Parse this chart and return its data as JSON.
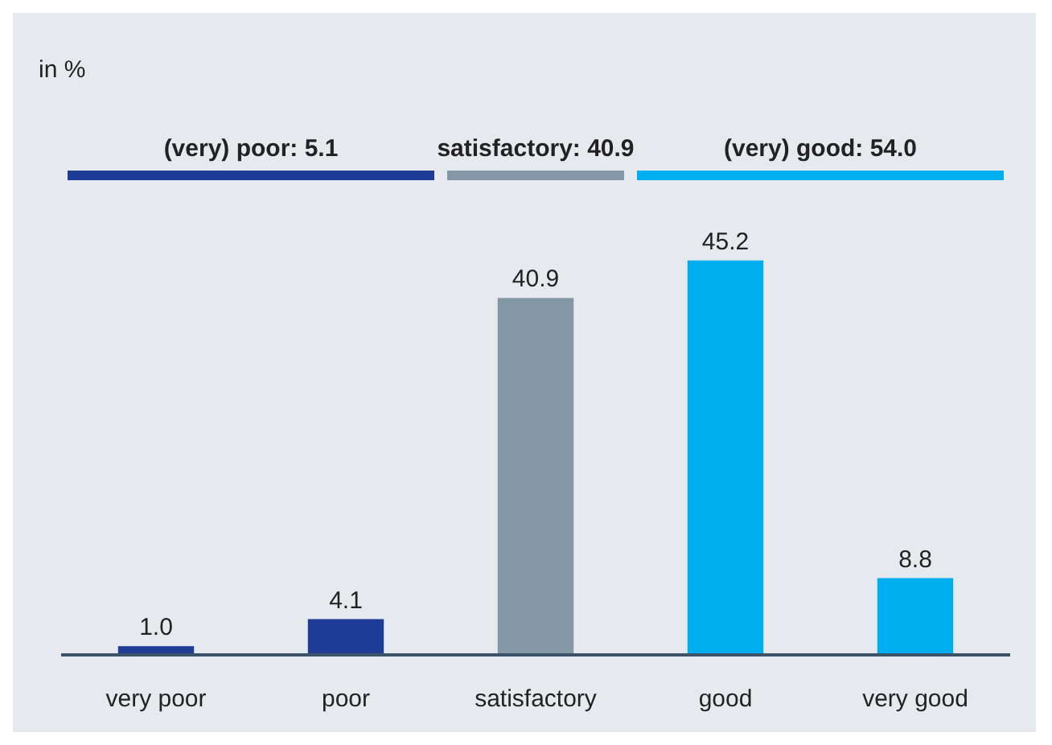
{
  "chart_data": {
    "type": "bar",
    "categories": [
      "very poor",
      "poor",
      "satisfactory",
      "good",
      "very good"
    ],
    "values": [
      1.0,
      4.1,
      40.9,
      45.2,
      8.8
    ],
    "value_labels": [
      "1.0",
      "4.1",
      "40.9",
      "45.2",
      "8.8"
    ],
    "colors": [
      "#1f3c96",
      "#1f3c96",
      "#8497a5",
      "#00aeef",
      "#00aeef"
    ],
    "annotations": [
      "in %",
      "(very) poor: 5.1",
      "satisfactory: 40.9",
      "(very) good: 54.0"
    ]
  }
}
